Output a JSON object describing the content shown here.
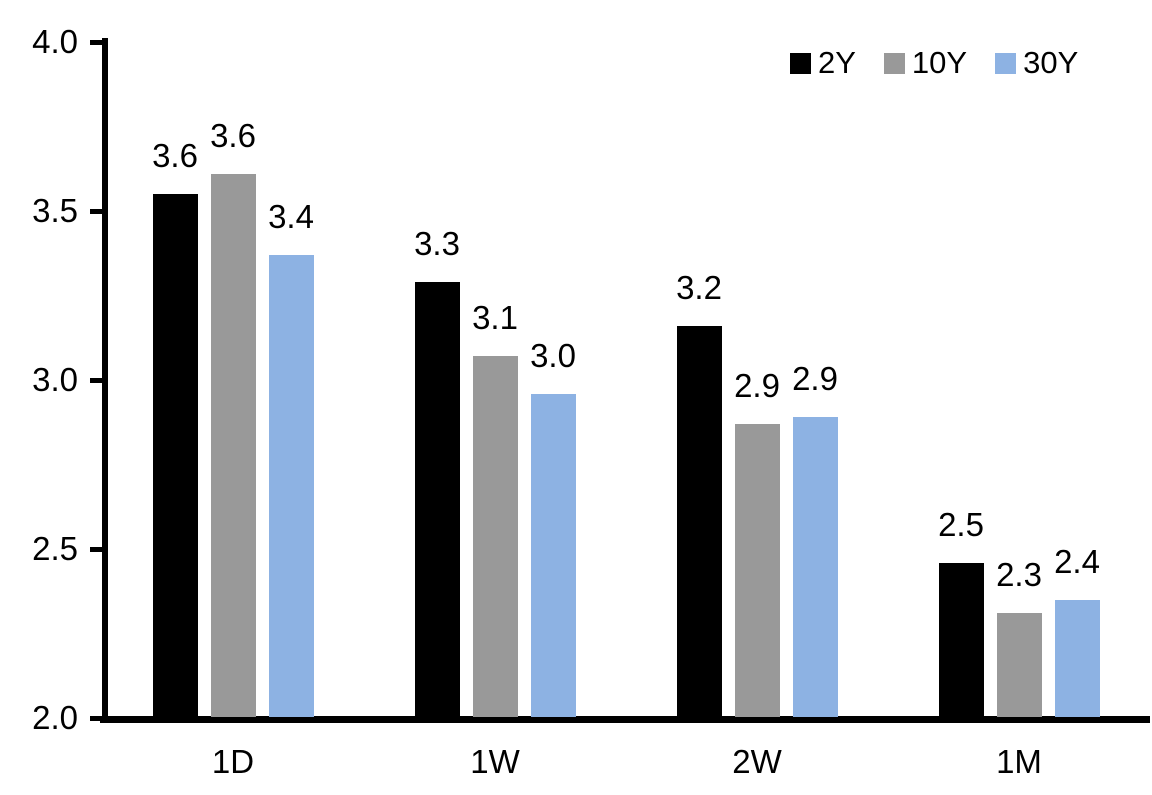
{
  "chart_data": {
    "type": "bar",
    "title": "",
    "xlabel": "",
    "ylabel": "",
    "grid": false,
    "legend_position": "top-right",
    "ylim": [
      2.0,
      4.0
    ],
    "yticks": [
      2.0,
      2.5,
      3.0,
      3.5,
      4.0
    ],
    "ytick_labels": [
      "2.0",
      "2.5",
      "3.0",
      "3.5",
      "4.0"
    ],
    "categories": [
      "1D",
      "1W",
      "2W",
      "1M"
    ],
    "series": [
      {
        "name": "2Y",
        "color": "#000000",
        "values": [
          3.55,
          3.29,
          3.16,
          2.46
        ],
        "labels": [
          "3.6",
          "3.3",
          "3.2",
          "2.5"
        ]
      },
      {
        "name": "10Y",
        "color": "#999999",
        "values": [
          3.61,
          3.07,
          2.87,
          2.31
        ],
        "labels": [
          "3.6",
          "3.1",
          "2.9",
          "2.3"
        ]
      },
      {
        "name": "30Y",
        "color": "#8DB2E3",
        "values": [
          3.37,
          2.96,
          2.89,
          2.35
        ],
        "labels": [
          "3.4",
          "3.0",
          "2.9",
          "2.4"
        ]
      }
    ]
  }
}
